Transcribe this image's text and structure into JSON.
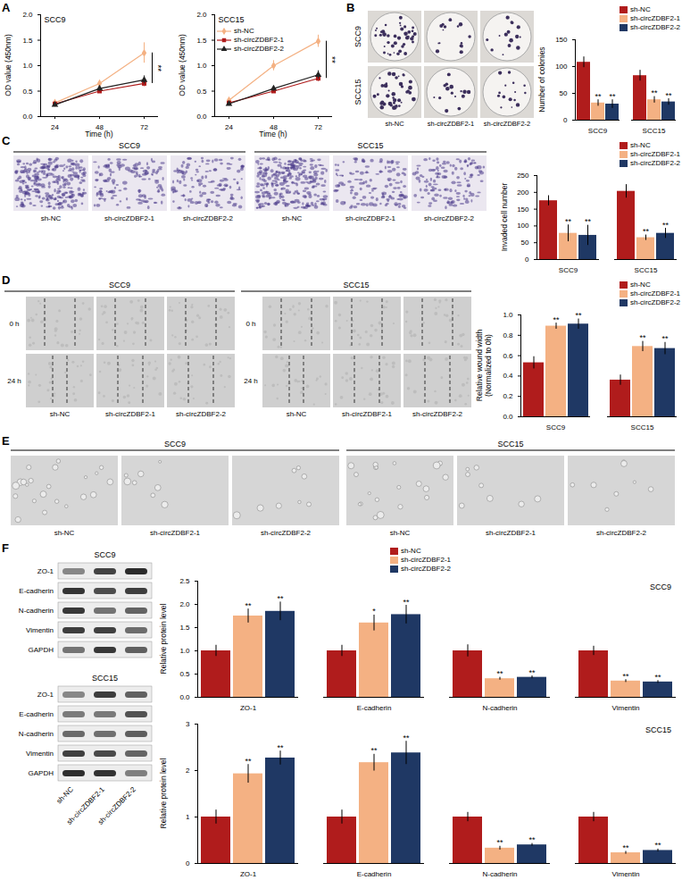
{
  "panel_labels": [
    "A",
    "B",
    "C",
    "D",
    "E",
    "F"
  ],
  "chart_data": [
    {
      "type": "line",
      "title": "SCC9",
      "x_label": "Time (h)",
      "y_label": "OD value (450nm)",
      "categories": [
        "24",
        "48",
        "72"
      ],
      "ylim": [
        0,
        2
      ],
      "yticks": [
        {
          "value": 0,
          "label": "0.0"
        },
        {
          "value": 0.5,
          "label": "0.5"
        },
        {
          "value": 1,
          "label": "1.0"
        },
        {
          "value": 1.5,
          "label": "1.5"
        },
        {
          "value": 2,
          "label": "2.0"
        }
      ],
      "series": [
        {
          "name": "sh-NC",
          "color": "#f4b183",
          "marker": "diamond",
          "values": [
            0.27,
            0.65,
            1.25
          ],
          "errors": [
            0.03,
            0.06,
            0.2
          ]
        },
        {
          "name": "sh-circZDBF2-1",
          "color": "#b01c1c",
          "marker": "square",
          "values": [
            0.25,
            0.5,
            0.65
          ],
          "errors": [
            0.02,
            0.04,
            0.06
          ]
        },
        {
          "name": "sh-circZDBF2-2",
          "color": "#222222",
          "marker": "triangle",
          "values": [
            0.23,
            0.55,
            0.72
          ],
          "errors": [
            0.02,
            0.05,
            0.08
          ]
        }
      ],
      "annotations": [
        {
          "text": "**",
          "x": "72"
        }
      ]
    },
    {
      "type": "line",
      "title": "SCC15",
      "x_label": "Time (h)",
      "y_label": "OD value (450nm)",
      "categories": [
        "24",
        "48",
        "72"
      ],
      "ylim": [
        0,
        2
      ],
      "legend": "top-left",
      "yticks": [
        {
          "value": 0,
          "label": "0.0"
        },
        {
          "value": 0.5,
          "label": "0.5"
        },
        {
          "value": 1,
          "label": "1.0"
        },
        {
          "value": 1.5,
          "label": "1.5"
        },
        {
          "value": 2,
          "label": "2.0"
        }
      ],
      "series": [
        {
          "name": "sh-NC",
          "color": "#f4b183",
          "marker": "diamond",
          "values": [
            0.32,
            1.0,
            1.48
          ],
          "errors": [
            0.04,
            0.1,
            0.12
          ]
        },
        {
          "name": "sh-circZDBF2-1",
          "color": "#b01c1c",
          "marker": "square",
          "values": [
            0.27,
            0.5,
            0.75
          ],
          "errors": [
            0.02,
            0.04,
            0.06
          ]
        },
        {
          "name": "sh-circZDBF2-2",
          "color": "#222222",
          "marker": "triangle",
          "values": [
            0.25,
            0.55,
            0.82
          ],
          "errors": [
            0.02,
            0.05,
            0.08
          ]
        }
      ],
      "annotations": [
        {
          "text": "**",
          "x": "72"
        }
      ]
    },
    {
      "type": "bar",
      "y_label": "Number of colonies",
      "categories": [
        "SCC9",
        "SCC15"
      ],
      "ylim": [
        0,
        150
      ],
      "yticks": [
        0,
        50,
        100,
        150
      ],
      "legend": "top-right",
      "series": [
        {
          "name": "sh-NC",
          "color": "#b01c1c",
          "values": [
            108,
            83
          ],
          "errors": [
            10,
            10
          ],
          "significance": [
            null,
            null
          ]
        },
        {
          "name": "sh-circZDBF2-1",
          "color": "#f4b183",
          "values": [
            32,
            38
          ],
          "errors": [
            6,
            6
          ],
          "significance": [
            "**",
            "**"
          ]
        },
        {
          "name": "sh-circZDBF2-2",
          "color": "#1f3864",
          "values": [
            30,
            34
          ],
          "errors": [
            8,
            6
          ],
          "significance": [
            "**",
            "**"
          ]
        }
      ]
    },
    {
      "type": "bar",
      "y_label": "Invaded cell number",
      "categories": [
        "SCC9",
        "SCC15"
      ],
      "ylim": [
        0,
        250
      ],
      "yticks": [
        0,
        50,
        100,
        150,
        200,
        250
      ],
      "legend": "top-right",
      "series": [
        {
          "name": "sh-NC",
          "color": "#b01c1c",
          "values": [
            175,
            203
          ],
          "errors": [
            15,
            20
          ],
          "significance": [
            null,
            null
          ]
        },
        {
          "name": "sh-circZDBF2-1",
          "color": "#f4b183",
          "values": [
            78,
            65
          ],
          "errors": [
            25,
            8
          ],
          "significance": [
            "**",
            "**"
          ]
        },
        {
          "name": "sh-circZDBF2-2",
          "color": "#1f3864",
          "values": [
            72,
            78
          ],
          "errors": [
            30,
            15
          ],
          "significance": [
            "**",
            "**"
          ]
        }
      ]
    },
    {
      "type": "bar",
      "y_label": "Relative wound width\n(Normalized to 0h)",
      "categories": [
        "SCC9",
        "SCC15"
      ],
      "ylim": [
        0,
        1
      ],
      "yticks": [
        {
          "value": 0,
          "label": "0.0"
        },
        {
          "value": 0.2,
          "label": "0.2"
        },
        {
          "value": 0.4,
          "label": "0.4"
        },
        {
          "value": 0.6,
          "label": "0.6"
        },
        {
          "value": 0.8,
          "label": "0.8"
        },
        {
          "value": 1,
          "label": "1.0"
        }
      ],
      "legend": "top-right",
      "series": [
        {
          "name": "sh-NC",
          "color": "#b01c1c",
          "values": [
            0.53,
            0.36
          ],
          "errors": [
            0.06,
            0.05
          ],
          "significance": [
            null,
            null
          ]
        },
        {
          "name": "sh-circZDBF2-1",
          "color": "#f4b183",
          "values": [
            0.89,
            0.69
          ],
          "errors": [
            0.03,
            0.05
          ],
          "significance": [
            "**",
            "**"
          ]
        },
        {
          "name": "sh-circZDBF2-2",
          "color": "#1f3864",
          "values": [
            0.91,
            0.67
          ],
          "errors": [
            0.05,
            0.06
          ],
          "significance": [
            "**",
            "**"
          ]
        }
      ]
    },
    {
      "type": "bar",
      "title": "SCC9",
      "y_label": "Relative protein level",
      "categories": [
        "ZO-1",
        "E-cadherin",
        "N-cadherin",
        "Vimentin"
      ],
      "ylim": [
        0,
        2.5
      ],
      "yticks": [
        {
          "value": 0,
          "label": "0.0"
        },
        {
          "value": 0.5,
          "label": "0.5"
        },
        {
          "value": 1,
          "label": "1.0"
        },
        {
          "value": 1.5,
          "label": "1.5"
        },
        {
          "value": 2,
          "label": "2.0"
        },
        {
          "value": 2.5,
          "label": "2.5"
        }
      ],
      "legend": "top",
      "series": [
        {
          "name": "sh-NC",
          "color": "#b01c1c",
          "values": [
            1,
            1,
            1,
            1
          ],
          "errors": [
            0.12,
            0.12,
            0.13,
            0.1
          ],
          "significance": [
            null,
            null,
            null,
            null
          ]
        },
        {
          "name": "sh-circZDBF2-1",
          "color": "#f4b183",
          "values": [
            1.75,
            1.6,
            0.4,
            0.35
          ],
          "errors": [
            0.15,
            0.17,
            0.03,
            0.03
          ],
          "significance": [
            "**",
            "*",
            "**",
            "**"
          ]
        },
        {
          "name": "sh-circZDBF2-2",
          "color": "#1f3864",
          "values": [
            1.85,
            1.78,
            0.43,
            0.33
          ],
          "errors": [
            0.2,
            0.2,
            0.03,
            0.03
          ],
          "significance": [
            "**",
            "**",
            "**",
            "**"
          ]
        }
      ]
    },
    {
      "type": "bar",
      "title": "SCC15",
      "y_label": "Relative protein level",
      "categories": [
        "ZO-1",
        "E-cadherin",
        "N-cadherin",
        "Vimentin"
      ],
      "ylim": [
        0,
        3
      ],
      "yticks": [
        0,
        1,
        2,
        3
      ],
      "series": [
        {
          "name": "sh-NC",
          "color": "#b01c1c",
          "values": [
            1,
            1,
            1,
            1
          ],
          "errors": [
            0.15,
            0.15,
            0.1,
            0.1
          ],
          "significance": [
            null,
            null,
            null,
            null
          ]
        },
        {
          "name": "sh-circZDBF2-1",
          "color": "#f4b183",
          "values": [
            1.93,
            2.17,
            0.33,
            0.23
          ],
          "errors": [
            0.2,
            0.18,
            0.04,
            0.03
          ],
          "significance": [
            "**",
            "**",
            "**",
            "**"
          ]
        },
        {
          "name": "sh-circZDBF2-2",
          "color": "#1f3864",
          "values": [
            2.27,
            2.38,
            0.4,
            0.28
          ],
          "errors": [
            0.15,
            0.25,
            0.03,
            0.03
          ],
          "significance": [
            "**",
            "**",
            "**",
            "**"
          ]
        }
      ]
    }
  ],
  "images": [
    {
      "rows": [
        "SCC9",
        "SCC15"
      ],
      "columns": [
        "sh-NC",
        "sh-circZDBF2-1",
        "sh-circZDBF2-2"
      ]
    },
    {
      "groups": [
        "SCC9",
        "SCC15"
      ],
      "columns": [
        "sh-NC",
        "sh-circZDBF2-1",
        "sh-circZDBF2-2"
      ]
    },
    {
      "groups": [
        "SCC9",
        "SCC15"
      ],
      "rows": [
        "0 h",
        "24 h"
      ],
      "columns": [
        "sh-NC",
        "sh-circZDBF2-1",
        "sh-circZDBF2-2"
      ]
    },
    {
      "groups": [
        "SCC9",
        "SCC15"
      ],
      "columns": [
        "sh-NC",
        "sh-circZDBF2-1",
        "sh-circZDBF2-2"
      ]
    },
    {
      "groups": [
        "SCC9",
        "SCC15"
      ],
      "rows": [
        "ZO-1",
        "E-cadherin",
        "N-cadherin",
        "Vimentin",
        "GAPDH"
      ],
      "columns": [
        "sh-NC",
        "sh-circZDBF2-1",
        "sh-circZDBF2-2"
      ]
    }
  ]
}
